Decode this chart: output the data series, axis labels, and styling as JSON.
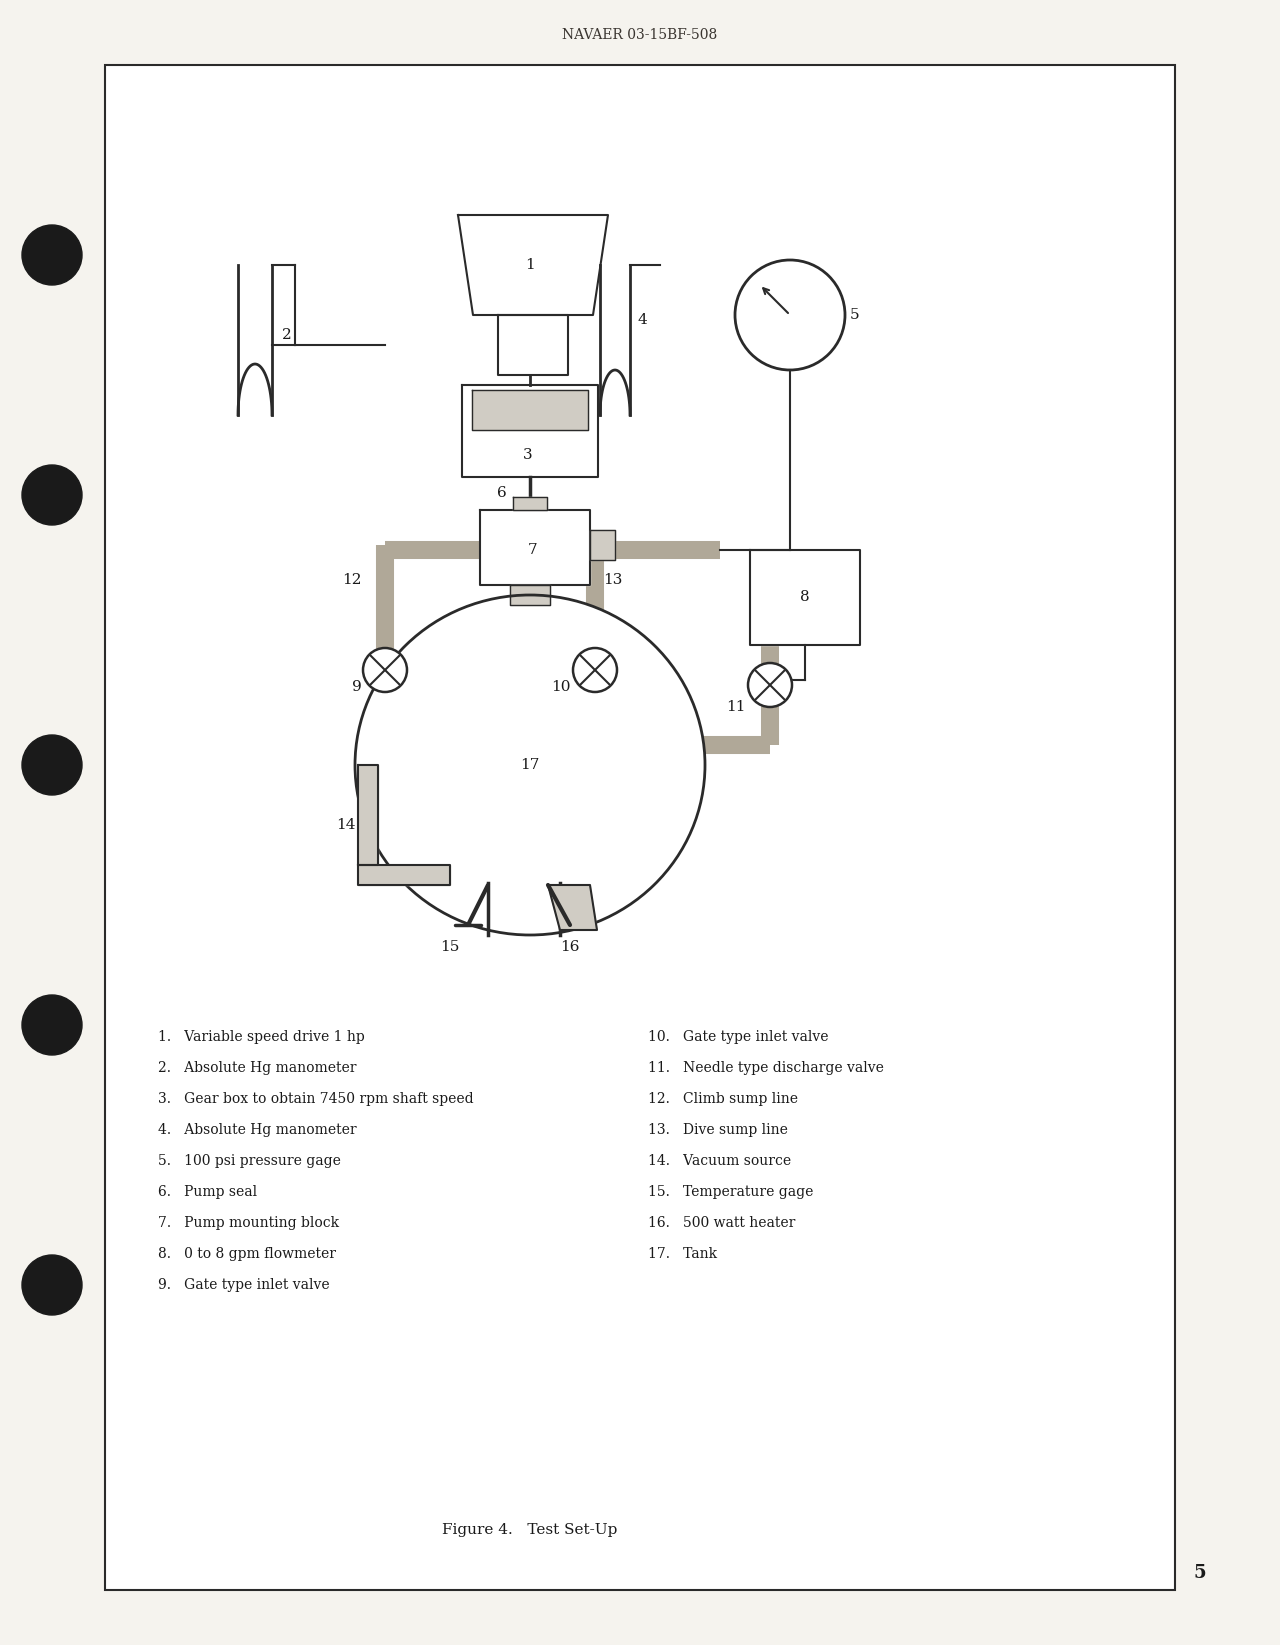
{
  "page_bg": "#f5f3ee",
  "border_color": "#2a2a2a",
  "line_color": "#2a2a2a",
  "gray_fill": "#b0a898",
  "light_gray": "#d0ccc4",
  "header_text": "NAVAER 03-15BF-508",
  "figure_caption": "Figure 4.   Test Set-Up",
  "page_number": "5",
  "legend_left": [
    "1.   Variable speed drive 1 hp",
    "2.   Absolute Hg manometer",
    "3.   Gear box to obtain 7450 rpm shaft speed",
    "4.   Absolute Hg manometer",
    "5.   100 psi pressure gage",
    "6.   Pump seal",
    "7.   Pump mounting block",
    "8.   0 to 8 gpm flowmeter",
    "9.   Gate type inlet valve"
  ],
  "legend_right": [
    "10.   Gate type inlet valve",
    "11.   Needle type discharge valve",
    "12.   Climb sump line",
    "13.   Dive sump line",
    "14.   Vacuum source",
    "15.   Temperature gage",
    "16.   500 watt heater",
    "17.   Tank"
  ]
}
